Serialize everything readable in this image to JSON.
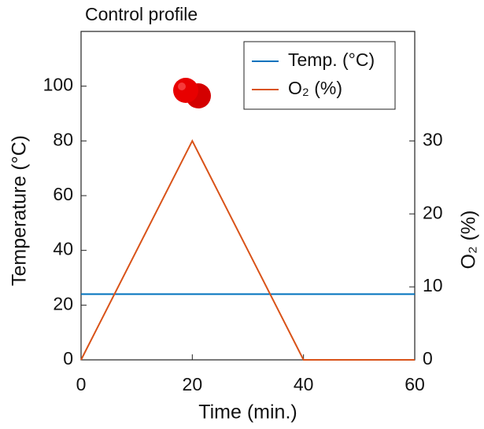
{
  "chart_data": {
    "type": "line",
    "title": "Control profile",
    "x_label": "Time (min.)",
    "y_label": "Temperature (°C)",
    "y2_label": "O₂ (%)",
    "x": [
      0,
      20,
      40,
      60
    ],
    "series": [
      {
        "name": "Temp. (°C)",
        "color": "#0072bd",
        "values": [
          24,
          24,
          24,
          24
        ]
      },
      {
        "name": "O₂ (%)",
        "color": "#d95319",
        "values": [
          0,
          30,
          0,
          0
        ],
        "axis": "y2"
      }
    ],
    "xlim": [
      0,
      60
    ],
    "xticks": [
      0,
      20,
      40,
      60
    ],
    "ylim": [
      0,
      120
    ],
    "yticks": [
      0,
      20,
      40,
      60,
      80,
      100
    ],
    "y2lim": [
      0,
      45
    ],
    "y2ticks": [
      0,
      10,
      20,
      30
    ],
    "legend": "upper-right"
  }
}
